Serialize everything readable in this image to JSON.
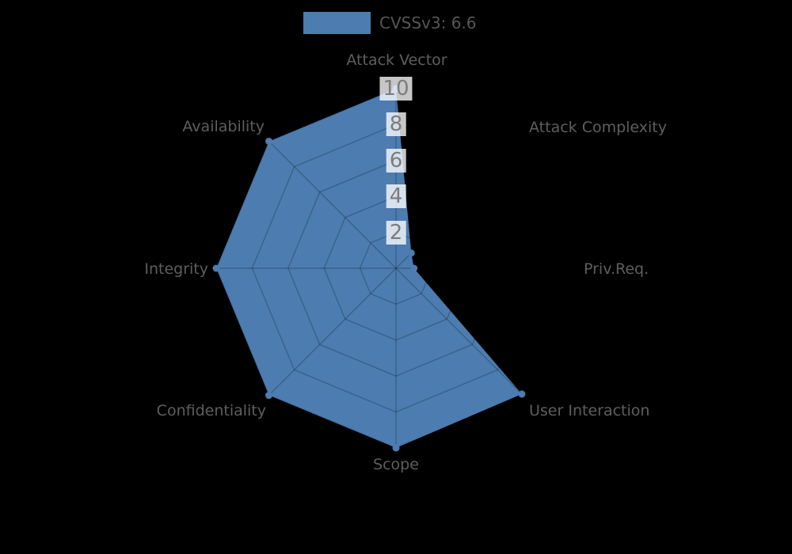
{
  "legend": {
    "label": "CVSSv3: 6.6",
    "swatch_color": "#4c7cb0"
  },
  "chart_data": {
    "type": "radar",
    "title": "CVSSv3: 6.6",
    "categories": [
      "Attack Vector",
      "Attack Complexity",
      "Priv.Req.",
      "User Interaction",
      "Scope",
      "Confidentiality",
      "Integrity",
      "Availability"
    ],
    "values": [
      10,
      1.2,
      1.0,
      9.9,
      10,
      10,
      10,
      10
    ],
    "ticks": [
      2,
      4,
      6,
      8,
      10
    ],
    "rmax": 10,
    "grid": true,
    "legend_position": "top-center",
    "fill_color": "#4c7cb0",
    "grid_color": "rgba(0,0,0,0.22)",
    "label_color": "#5e5e5e",
    "tick_text_color": "#7c7c7c",
    "tick_box_color": "rgba(255,255,255,0.78)",
    "background_color": "#000000"
  }
}
